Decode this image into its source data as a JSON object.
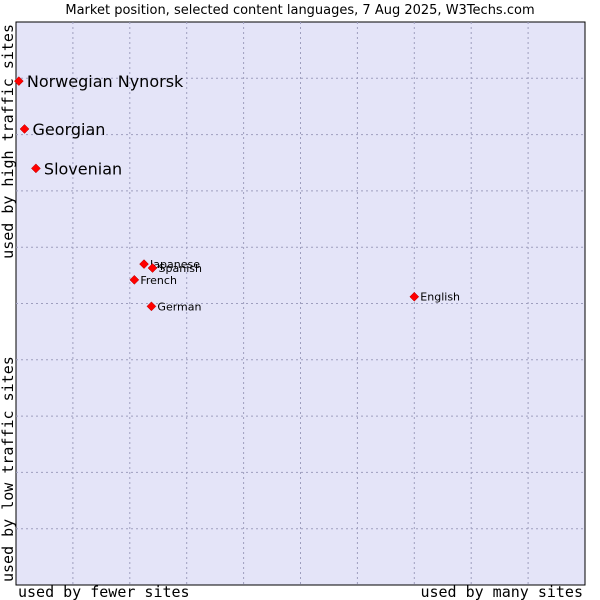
{
  "chart_data": {
    "type": "scatter",
    "title": "Market position, selected content languages, 7 Aug 2025, W3Techs.com",
    "xlabel_left": "used by fewer sites",
    "xlabel_right": "used by many sites",
    "ylabel_bottom": "used by low traffic sites",
    "ylabel_top": "used by high traffic sites",
    "xlim": [
      0,
      100
    ],
    "ylim": [
      0,
      100
    ],
    "grid": true,
    "point_color": "#ff0000",
    "plot_background": "#e4e4f8",
    "points": [
      {
        "label": "Norwegian Nynorsk",
        "x": 0.5,
        "y": 89.5,
        "emphasis": true
      },
      {
        "label": "Georgian",
        "x": 1.5,
        "y": 81.0,
        "emphasis": true
      },
      {
        "label": "Slovenian",
        "x": 3.5,
        "y": 74.0,
        "emphasis": true
      },
      {
        "label": "Japanese",
        "x": 22.5,
        "y": 57.0,
        "emphasis": false
      },
      {
        "label": "Spanish",
        "x": 24.0,
        "y": 56.3,
        "emphasis": false
      },
      {
        "label": "French",
        "x": 20.8,
        "y": 54.2,
        "emphasis": false
      },
      {
        "label": "German",
        "x": 23.8,
        "y": 49.5,
        "emphasis": false
      },
      {
        "label": "English",
        "x": 70.0,
        "y": 51.2,
        "emphasis": false
      }
    ]
  }
}
